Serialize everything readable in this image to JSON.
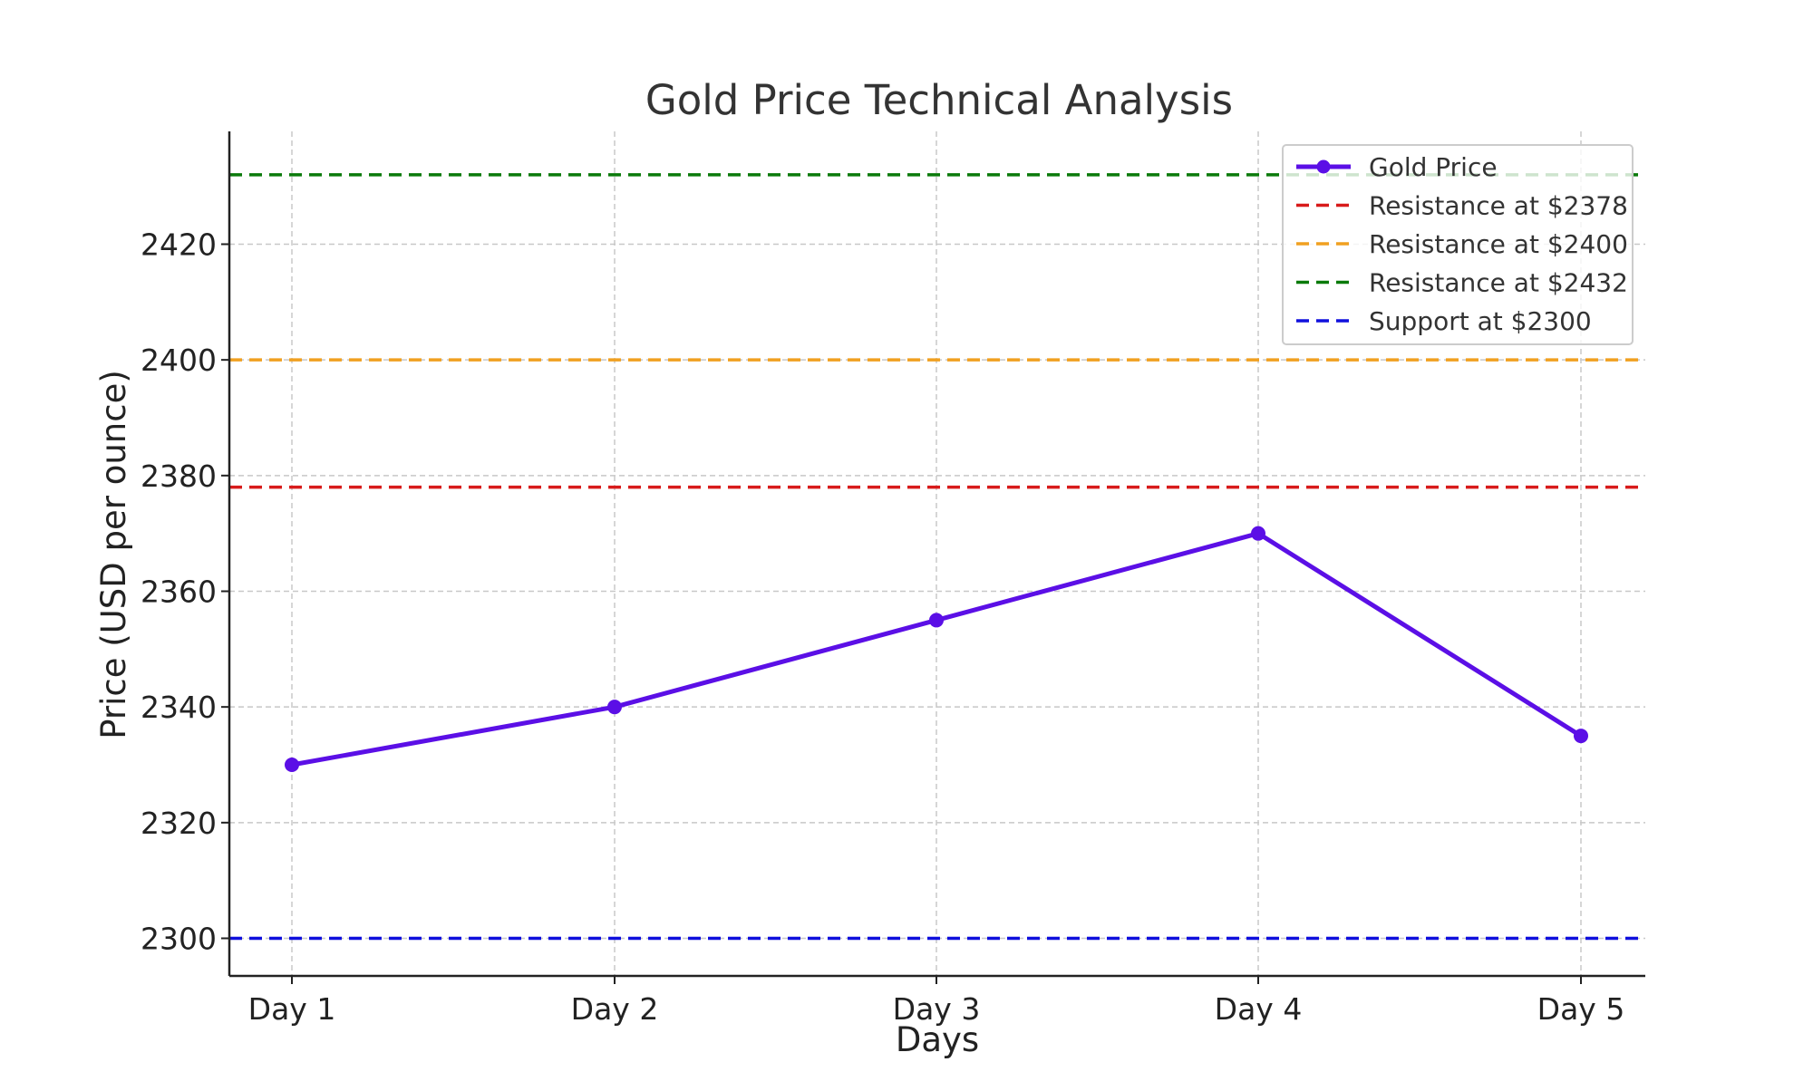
{
  "chart_data": {
    "type": "line",
    "title": "Gold Price Technical Analysis",
    "xlabel": "Days",
    "ylabel": "Price (USD per ounce)",
    "categories": [
      "Day 1",
      "Day 2",
      "Day 3",
      "Day 4",
      "Day 5"
    ],
    "ylim": [
      2293.5,
      2439.5
    ],
    "yticks": [
      2300,
      2320,
      2340,
      2360,
      2380,
      2400,
      2420
    ],
    "grid": true,
    "legend_position": "top-right",
    "series": [
      {
        "name": "Gold Price",
        "values": [
          2330,
          2340,
          2355,
          2370,
          2335
        ],
        "color": "#5b0fe6",
        "marker": "circle"
      }
    ],
    "reference_lines": [
      {
        "name": "Resistance at $2378",
        "y": 2378,
        "color": "#d81b1b",
        "style": "dashed"
      },
      {
        "name": "Resistance at $2400",
        "y": 2400,
        "color": "#f0a020",
        "style": "dashed"
      },
      {
        "name": "Resistance at $2432",
        "y": 2432,
        "color": "#0a7a0a",
        "style": "dashed"
      },
      {
        "name": "Support at $2300",
        "y": 2300,
        "color": "#1010dd",
        "style": "dashed"
      }
    ]
  }
}
